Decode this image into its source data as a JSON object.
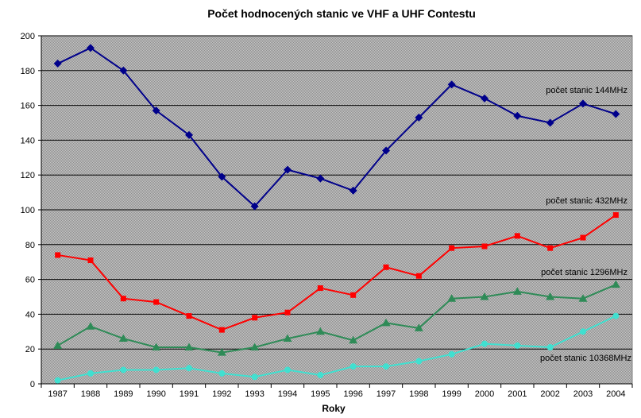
{
  "chart_data": {
    "type": "line",
    "title": "Počet hodnocených stanic ve VHF a UHF Contestu",
    "xlabel": "Roky",
    "ylabel": "",
    "ylim": [
      0,
      200
    ],
    "yticks": [
      0,
      20,
      40,
      60,
      80,
      100,
      120,
      140,
      160,
      180,
      200
    ],
    "grid": true,
    "legend": "inline labels",
    "x": [
      "1987",
      "1988",
      "1989",
      "1990",
      "1991",
      "1992",
      "1993",
      "1994",
      "1995",
      "1996",
      "1997",
      "1998",
      "1999",
      "2000",
      "2001",
      "2002",
      "2003",
      "2004"
    ],
    "series": [
      {
        "name": "počet stanic 144MHz",
        "color": "#00008b",
        "marker": "diamond",
        "values": [
          184,
          193,
          180,
          157,
          143,
          119,
          102,
          123,
          118,
          111,
          134,
          153,
          172,
          164,
          154,
          150,
          161,
          155
        ]
      },
      {
        "name": "počet stanic 432MHz",
        "color": "#ff0000",
        "marker": "square",
        "values": [
          74,
          71,
          49,
          47,
          39,
          31,
          38,
          41,
          55,
          51,
          67,
          62,
          78,
          79,
          85,
          78,
          84,
          97
        ]
      },
      {
        "name": "počet stanic 1296MHz",
        "color": "#2e8b57",
        "marker": "triangle",
        "values": [
          22,
          33,
          26,
          21,
          21,
          18,
          21,
          26,
          30,
          25,
          35,
          32,
          49,
          50,
          53,
          50,
          49,
          57
        ]
      },
      {
        "name": "počet stanic 10368MHz",
        "color": "#40e0d0",
        "marker": "circle",
        "values": [
          2,
          6,
          8,
          8,
          9,
          6,
          4,
          8,
          5,
          10,
          10,
          13,
          17,
          23,
          22,
          21,
          30,
          39
        ]
      }
    ]
  }
}
